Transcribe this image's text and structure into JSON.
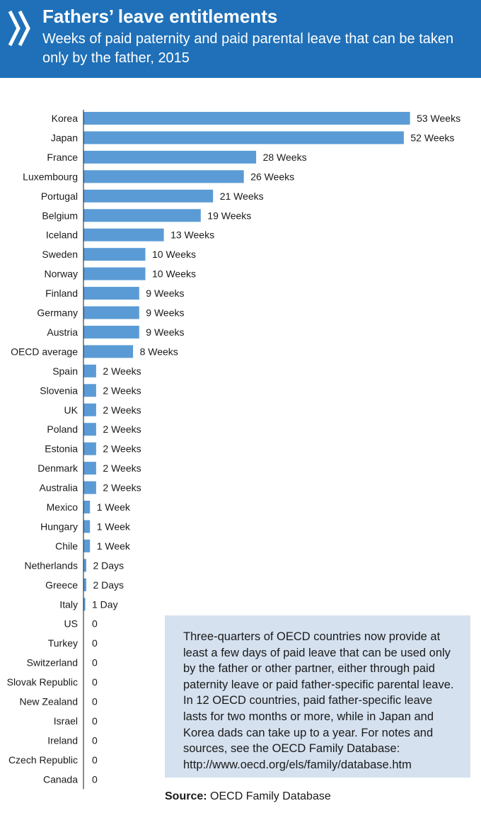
{
  "header": {
    "title": "Fathers’ leave entitlements",
    "subtitle": "Weeks of paid paternity and paid parental leave that can be taken only by the father, 2015"
  },
  "colors": {
    "header_bg": "#1f70b8",
    "bar": "#5b9bd5",
    "note_bg": "#d5e1ef"
  },
  "icons": {
    "logo": "oecd-logo-icon"
  },
  "chart_data": {
    "type": "bar",
    "orientation": "horizontal",
    "title": "Fathers’ leave entitlements",
    "subtitle": "Weeks of paid paternity and paid parental leave that can be taken only by the father, 2015",
    "unit": "weeks",
    "categories": [
      "Korea",
      "Japan",
      "France",
      "Luxembourg",
      "Portugal",
      "Belgium",
      "Iceland",
      "Sweden",
      "Norway",
      "Finland",
      "Germany",
      "Austria",
      "OECD average",
      "Spain",
      "Slovenia",
      "UK",
      "Poland",
      "Estonia",
      "Denmark",
      "Australia",
      "Mexico",
      "Hungary",
      "Chile",
      "Netherlands",
      "Greece",
      "Italy",
      "US",
      "Turkey",
      "Switzerland",
      "Slovak Republic",
      "New Zealand",
      "Israel",
      "Ireland",
      "Czech Republic",
      "Canada"
    ],
    "values": [
      53,
      52,
      28,
      26,
      21,
      19,
      13,
      10,
      10,
      9,
      9,
      9,
      8,
      2,
      2,
      2,
      2,
      2,
      2,
      2,
      1,
      1,
      1,
      0.4,
      0.4,
      0.2,
      0,
      0,
      0,
      0,
      0,
      0,
      0,
      0,
      0
    ],
    "data_labels": [
      "53 Weeks",
      "52 Weeks",
      "28 Weeks",
      "26 Weeks",
      "21 Weeks",
      "19 Weeks",
      "13 Weeks",
      "10 Weeks",
      "10 Weeks",
      "9 Weeks",
      "9 Weeks",
      "9 Weeks",
      "8 Weeks",
      "2 Weeks",
      "2 Weeks",
      "2 Weeks",
      "2 Weeks",
      "2 Weeks",
      "2 Weeks",
      "2 Weeks",
      "1 Week",
      "1 Week",
      "1 Week",
      "2 Days",
      "2 Days",
      "1 Day",
      "0",
      "0",
      "0",
      "0",
      "0",
      "0",
      "0",
      "0",
      "0"
    ],
    "xlim": [
      0,
      53
    ],
    "grid": false,
    "legend": "none"
  },
  "note": {
    "text": "Three-quarters of OECD countries now provide at least a few days of paid leave that can be used only by the father or other partner, either through paid paternity leave or paid father-specific parental leave. In 12 OECD countries, paid father-specific leave lasts for two months or more, while in Japan and Korea dads can take up to a year. For notes and sources, see the OECD Family Database: http://www.oecd.org/els/family/database.htm"
  },
  "source": {
    "label": "Source:",
    "text": " OECD Family Database"
  }
}
